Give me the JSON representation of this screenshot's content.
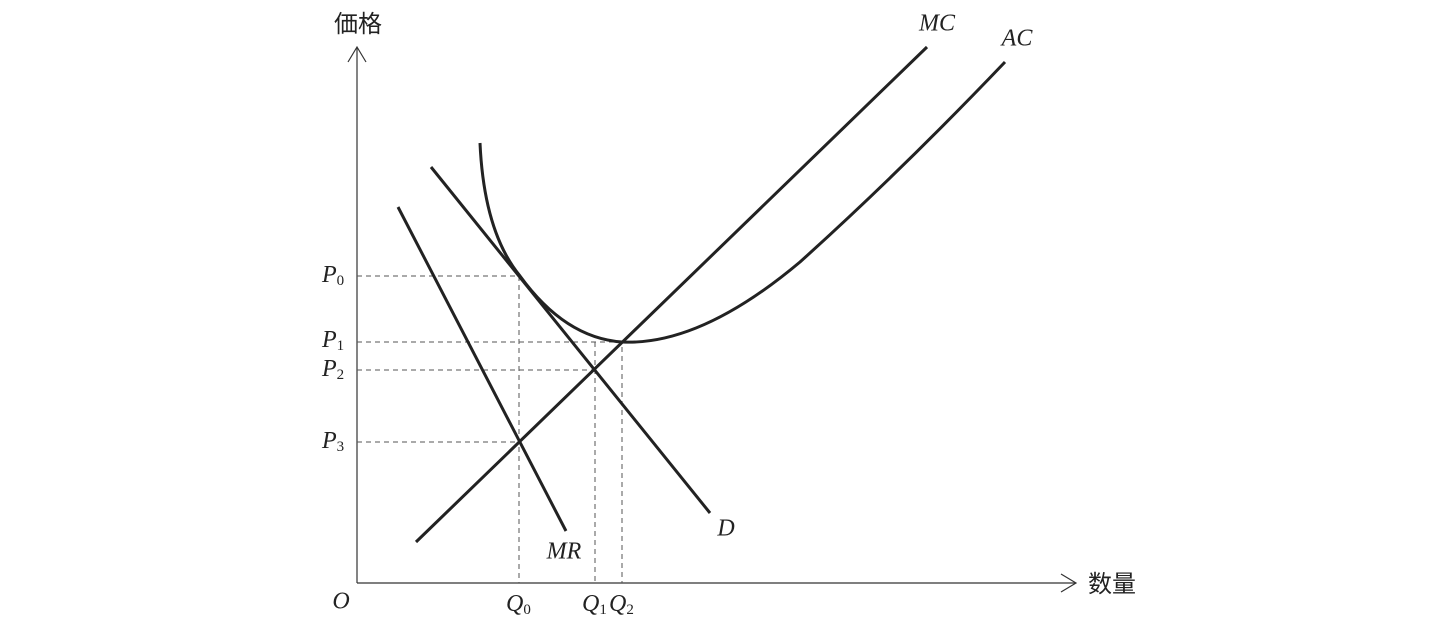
{
  "axes": {
    "y_label": "価格",
    "x_label": "数量",
    "origin": "O"
  },
  "curves": [
    {
      "label": "MC"
    },
    {
      "label": "AC"
    },
    {
      "label": "D"
    },
    {
      "label": "MR"
    }
  ],
  "price_labels": [
    {
      "symbol": "P",
      "sub": "0"
    },
    {
      "symbol": "P",
      "sub": "1"
    },
    {
      "symbol": "P",
      "sub": "2"
    },
    {
      "symbol": "P",
      "sub": "3"
    }
  ],
  "quantity_labels": [
    {
      "symbol": "Q",
      "sub": "0"
    },
    {
      "symbol": "Q",
      "sub": "1"
    },
    {
      "symbol": "Q",
      "sub": "2"
    }
  ]
}
